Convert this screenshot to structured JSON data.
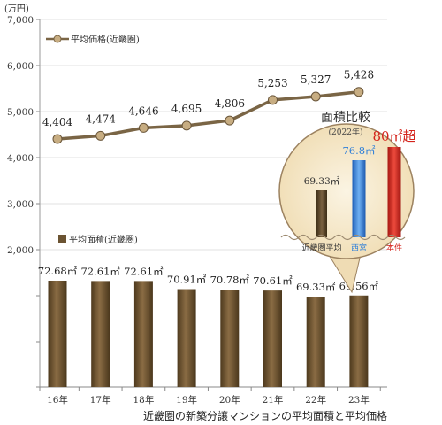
{
  "chart_data": [
    {
      "type": "line",
      "categories": [
        "16年",
        "17年",
        "18年",
        "19年",
        "20年",
        "21年",
        "22年",
        "23年"
      ],
      "series": [
        {
          "name": "平均価格(近畿圏)",
          "values": [
            4404,
            4474,
            4646,
            4695,
            4806,
            5253,
            5327,
            5428
          ]
        }
      ],
      "value_labels": [
        "4,404",
        "4,474",
        "4,646",
        "4,695",
        "4,806",
        "5,253",
        "5,327",
        "5,428"
      ],
      "unit": "(万円)",
      "ylim": [
        2000,
        7000
      ],
      "yticks": [
        "2,000",
        "3,000",
        "4,000",
        "5,000",
        "6,000",
        "7,000"
      ],
      "grid": true,
      "legend": "top-left"
    },
    {
      "type": "bar",
      "categories": [
        "16年",
        "17年",
        "18年",
        "19年",
        "20年",
        "21年",
        "22年",
        "23年"
      ],
      "series": [
        {
          "name": "平均面積(近畿圏)",
          "values": [
            72.68,
            72.61,
            72.61,
            70.91,
            70.78,
            70.61,
            69.33,
            69.56
          ]
        }
      ],
      "value_labels": [
        "72.68㎡",
        "72.61㎡",
        "72.61㎡",
        "70.91㎡",
        "70.78㎡",
        "70.61㎡",
        "69.33㎡",
        "69.56㎡"
      ],
      "legend": "left"
    },
    {
      "type": "bar",
      "title": "面積比較",
      "subtitle": "(2022年)",
      "categories": [
        "近畿圏平均",
        "西宮",
        "本件"
      ],
      "values": [
        69.33,
        76.8,
        80
      ],
      "value_labels": [
        "69.33㎡",
        "76.8㎡",
        "80㎡超"
      ],
      "colors": [
        "#5e4a2c",
        "#2f7fd8",
        "#d4241c"
      ]
    }
  ],
  "caption": "近畿圏の新築分譲マンションの平均面積と平均価格",
  "colors": {
    "bar": "#6b5332",
    "line": "#7a6545",
    "marker": "#c7ad82",
    "grid": "#d8d8d8",
    "bubble": "#f6ead0"
  }
}
